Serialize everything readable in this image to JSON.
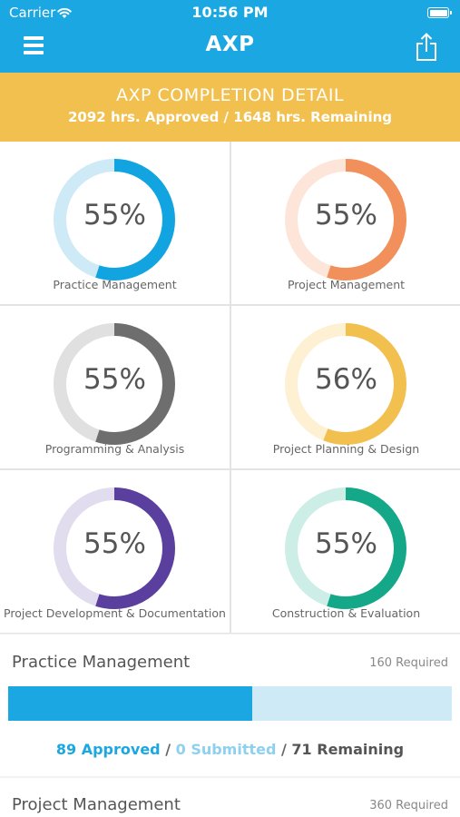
{
  "status_bar": {
    "carrier": "Carrier",
    "time": "10:56 PM"
  },
  "nav": {
    "title": "AXP"
  },
  "banner": {
    "title": "AXP COMPLETION DETAIL",
    "subtitle": "2092 hrs. Approved / 1648 hrs. Remaining"
  },
  "areas": [
    {
      "label": "Practice Management",
      "percent_text": "55%",
      "percent": 55,
      "color": "#12a4e0",
      "track": "#cdeaf6"
    },
    {
      "label": "Project Management",
      "percent_text": "55%",
      "percent": 55,
      "color": "#f2905c",
      "track": "#fde5d9"
    },
    {
      "label": "Programming & Analysis",
      "percent_text": "55%",
      "percent": 55,
      "color": "#6e6e6e",
      "track": "#e0e0e0"
    },
    {
      "label": "Project Planning & Design",
      "percent_text": "56%",
      "percent": 56,
      "color": "#f2c04f",
      "track": "#fdf0d3"
    },
    {
      "label": "Project Development & Documentation",
      "percent_text": "55%",
      "percent": 55,
      "color": "#5b3f9e",
      "track": "#e1dcee"
    },
    {
      "label": "Construction & Evaluation",
      "percent_text": "55%",
      "percent": 55,
      "color": "#14a888",
      "track": "#cdeee6"
    }
  ],
  "details": [
    {
      "name": "Practice Management",
      "required": "160 Required",
      "progress": 0.55,
      "approved": "89 Approved",
      "submitted": "0 Submitted",
      "remaining": "71 Remaining"
    },
    {
      "name": "Project Management",
      "required": "360 Required"
    }
  ]
}
